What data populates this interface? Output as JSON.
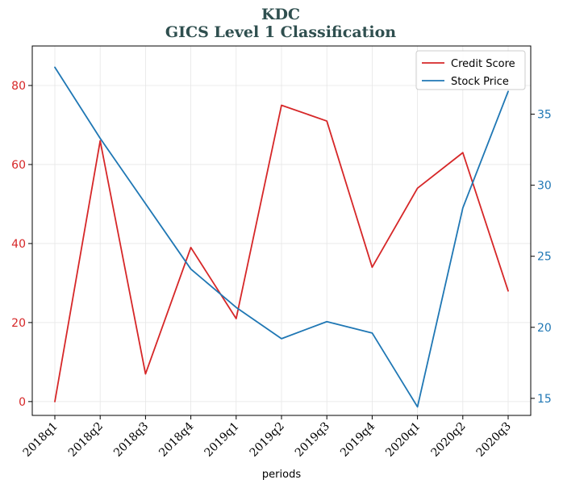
{
  "chart_data": {
    "type": "line",
    "title": "KDC",
    "subtitle": "GICS Level 1 Classification",
    "xlabel": "periods",
    "categories": [
      "2018q1",
      "2018q2",
      "2018q3",
      "2018q4",
      "2019q1",
      "2019q2",
      "2019q3",
      "2019q4",
      "2020q1",
      "2020q2",
      "2020q3"
    ],
    "left_axis": {
      "ylim": [
        -3.5,
        90
      ],
      "ticks": [
        0,
        20,
        40,
        60,
        80
      ],
      "color": "#d62728"
    },
    "right_axis": {
      "ylim": [
        13.8,
        39.8
      ],
      "ticks": [
        15,
        20,
        25,
        30,
        35
      ],
      "color": "#1f77b4"
    },
    "series": [
      {
        "name": "Credit Score",
        "axis": "left",
        "color": "#d62728",
        "values": [
          0,
          66,
          7,
          39,
          21,
          75,
          71,
          34,
          54,
          63,
          28
        ]
      },
      {
        "name": "Stock Price",
        "axis": "right",
        "color": "#1f77b4",
        "values": [
          38.3,
          33.3,
          28.7,
          24.1,
          21.4,
          19.2,
          20.4,
          19.6,
          14.4,
          28.4,
          36.6
        ]
      }
    ],
    "grid": true,
    "legend_position": "top-right"
  }
}
